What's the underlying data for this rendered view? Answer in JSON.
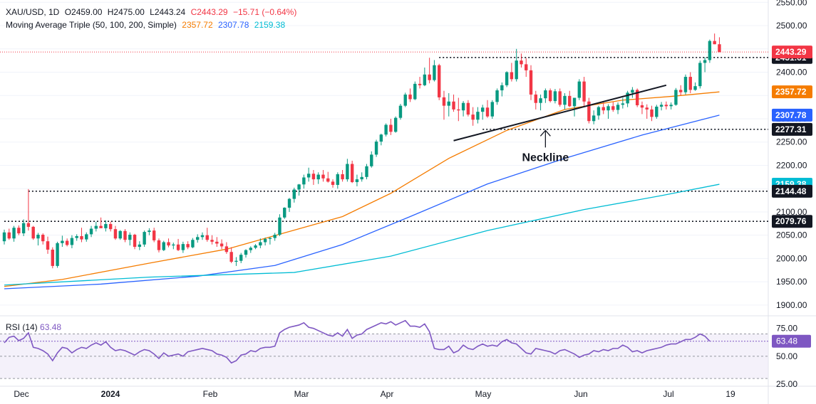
{
  "header": {
    "symbol": "XAU/USD, 1D",
    "open": "O2459.00",
    "high": "H2475.00",
    "low": "L2443.24",
    "close": "C2443.29",
    "change": "−15.71 (−0.64%)",
    "ma_label": "Moving Average Triple (50, 100, 200, Simple)",
    "ma50": "2357.72",
    "ma100": "2307.78",
    "ma200": "2159.38",
    "rsi_label": "RSI (14)",
    "rsi_value": "63.48"
  },
  "colors": {
    "up": "#089981",
    "down": "#f23645",
    "ma50": "#f57c00",
    "ma100": "#2962ff",
    "ma200": "#00bcd4",
    "rsi": "#7e57c2",
    "rsi_band": "#ede7f6",
    "last_price": "#f23645",
    "label_dark": "#131722"
  },
  "chart_data": {
    "type": "candlestick",
    "price_axis": {
      "ticks": [
        1900,
        1950,
        2000,
        2050,
        2100,
        2150,
        2200,
        2250,
        2300,
        2350,
        2400,
        2450,
        2500,
        2550
      ],
      "ylim": [
        1880,
        2555
      ],
      "visible_tick_labels": [
        "1900.00",
        "1950.00",
        "2000.00",
        "2050.00",
        "2100.00",
        "2200.00",
        "2250.00",
        "2300.00",
        "2400.00",
        "2500.00",
        "2550.00"
      ]
    },
    "x_axis": {
      "labels": [
        "Dec",
        "2024",
        "Feb",
        "Mar",
        "Apr",
        "May",
        "Jun",
        "Jul",
        "19"
      ]
    },
    "candles": [
      [
        2037,
        2062,
        2030,
        2056
      ],
      [
        2056,
        2064,
        2040,
        2043
      ],
      [
        2043,
        2070,
        2036,
        2066
      ],
      [
        2066,
        2071,
        2050,
        2054
      ],
      [
        2054,
        2084,
        2048,
        2076
      ],
      [
        2076,
        2149,
        2060,
        2068
      ],
      [
        2068,
        2070,
        2040,
        2043
      ],
      [
        2043,
        2055,
        2028,
        2051
      ],
      [
        2051,
        2054,
        2030,
        2037
      ],
      [
        2037,
        2047,
        2010,
        2019
      ],
      [
        2019,
        2024,
        1979,
        1984
      ],
      [
        1984,
        2036,
        1980,
        2033
      ],
      [
        2033,
        2049,
        2025,
        2038
      ],
      [
        2038,
        2043,
        2026,
        2029
      ],
      [
        2029,
        2050,
        2022,
        2044
      ],
      [
        2044,
        2052,
        2038,
        2048
      ],
      [
        2048,
        2066,
        2035,
        2041
      ],
      [
        2041,
        2056,
        2036,
        2052
      ],
      [
        2052,
        2070,
        2046,
        2064
      ],
      [
        2064,
        2079,
        2058,
        2070
      ],
      [
        2070,
        2088,
        2066,
        2065
      ],
      [
        2065,
        2082,
        2058,
        2074
      ],
      [
        2074,
        2079,
        2058,
        2063
      ],
      [
        2063,
        2070,
        2040,
        2043
      ],
      [
        2043,
        2061,
        2040,
        2059
      ],
      [
        2059,
        2063,
        2035,
        2040
      ],
      [
        2040,
        2056,
        2028,
        2051
      ],
      [
        2051,
        2053,
        2020,
        2025
      ],
      [
        2025,
        2037,
        2018,
        2030
      ],
      [
        2030,
        2060,
        2025,
        2057
      ],
      [
        2057,
        2065,
        2050,
        2060
      ],
      [
        2060,
        2066,
        2035,
        2039
      ],
      [
        2039,
        2043,
        2013,
        2018
      ],
      [
        2018,
        2038,
        2016,
        2035
      ],
      [
        2035,
        2043,
        2024,
        2028
      ],
      [
        2028,
        2034,
        2020,
        2030
      ],
      [
        2030,
        2042,
        2016,
        2018
      ],
      [
        2018,
        2036,
        2012,
        2031
      ],
      [
        2031,
        2037,
        2020,
        2024
      ],
      [
        2024,
        2044,
        2022,
        2040
      ],
      [
        2040,
        2052,
        2034,
        2046
      ],
      [
        2046,
        2056,
        2040,
        2050
      ],
      [
        2050,
        2066,
        2036,
        2040
      ],
      [
        2040,
        2050,
        2030,
        2036
      ],
      [
        2036,
        2046,
        2025,
        2032
      ],
      [
        2032,
        2041,
        2020,
        2026
      ],
      [
        2026,
        2035,
        2010,
        2014
      ],
      [
        2014,
        2024,
        1990,
        1993
      ],
      [
        1993,
        2003,
        1984,
        1995
      ],
      [
        1995,
        2012,
        1990,
        2008
      ],
      [
        2008,
        2020,
        2002,
        2018
      ],
      [
        2018,
        2026,
        2012,
        2023
      ],
      [
        2023,
        2031,
        2020,
        2028
      ],
      [
        2028,
        2043,
        2022,
        2035
      ],
      [
        2035,
        2045,
        2028,
        2042
      ],
      [
        2042,
        2046,
        2030,
        2044
      ],
      [
        2044,
        2055,
        2038,
        2051
      ],
      [
        2051,
        2095,
        2048,
        2088
      ],
      [
        2088,
        2110,
        2085,
        2109
      ],
      [
        2109,
        2130,
        2100,
        2128
      ],
      [
        2128,
        2152,
        2120,
        2148
      ],
      [
        2148,
        2160,
        2135,
        2159
      ],
      [
        2159,
        2180,
        2150,
        2174
      ],
      [
        2174,
        2195,
        2165,
        2182
      ],
      [
        2182,
        2190,
        2158,
        2170
      ],
      [
        2170,
        2185,
        2160,
        2180
      ],
      [
        2180,
        2190,
        2165,
        2172
      ],
      [
        2172,
        2186,
        2163,
        2165
      ],
      [
        2165,
        2170,
        2152,
        2158
      ],
      [
        2158,
        2185,
        2150,
        2181
      ],
      [
        2181,
        2190,
        2165,
        2170
      ],
      [
        2170,
        2214,
        2165,
        2203
      ],
      [
        2203,
        2210,
        2162,
        2164
      ],
      [
        2164,
        2180,
        2155,
        2170
      ],
      [
        2170,
        2185,
        2165,
        2175
      ],
      [
        2175,
        2203,
        2170,
        2198
      ],
      [
        2198,
        2230,
        2195,
        2223
      ],
      [
        2223,
        2255,
        2218,
        2251
      ],
      [
        2251,
        2268,
        2243,
        2266
      ],
      [
        2266,
        2290,
        2262,
        2287
      ],
      [
        2287,
        2300,
        2265,
        2272
      ],
      [
        2272,
        2305,
        2270,
        2302
      ],
      [
        2302,
        2332,
        2298,
        2328
      ],
      [
        2328,
        2356,
        2325,
        2352
      ],
      [
        2352,
        2365,
        2336,
        2342
      ],
      [
        2342,
        2380,
        2340,
        2375
      ],
      [
        2375,
        2390,
        2365,
        2372
      ],
      [
        2372,
        2410,
        2370,
        2395
      ],
      [
        2395,
        2431,
        2376,
        2383
      ],
      [
        2383,
        2426,
        2380,
        2415
      ],
      [
        2415,
        2418,
        2340,
        2346
      ],
      [
        2346,
        2360,
        2298,
        2328
      ],
      [
        2328,
        2355,
        2305,
        2337
      ],
      [
        2337,
        2352,
        2315,
        2320
      ],
      [
        2320,
        2345,
        2295,
        2318
      ],
      [
        2318,
        2338,
        2305,
        2334
      ],
      [
        2334,
        2340,
        2305,
        2309
      ],
      [
        2309,
        2325,
        2285,
        2298
      ],
      [
        2298,
        2325,
        2290,
        2315
      ],
      [
        2315,
        2330,
        2298,
        2324
      ],
      [
        2324,
        2340,
        2302,
        2305
      ],
      [
        2305,
        2340,
        2300,
        2336
      ],
      [
        2336,
        2365,
        2330,
        2361
      ],
      [
        2361,
        2378,
        2348,
        2372
      ],
      [
        2372,
        2402,
        2368,
        2400
      ],
      [
        2400,
        2420,
        2380,
        2385
      ],
      [
        2385,
        2450,
        2380,
        2425
      ],
      [
        2425,
        2440,
        2410,
        2417
      ],
      [
        2417,
        2430,
        2390,
        2404
      ],
      [
        2404,
        2415,
        2340,
        2352
      ],
      [
        2352,
        2360,
        2320,
        2334
      ],
      [
        2334,
        2352,
        2318,
        2344
      ],
      [
        2344,
        2365,
        2334,
        2361
      ],
      [
        2361,
        2365,
        2335,
        2338
      ],
      [
        2338,
        2364,
        2333,
        2359
      ],
      [
        2359,
        2365,
        2326,
        2330
      ],
      [
        2330,
        2355,
        2320,
        2349
      ],
      [
        2349,
        2360,
        2325,
        2327
      ],
      [
        2327,
        2340,
        2305,
        2345
      ],
      [
        2345,
        2385,
        2340,
        2380
      ],
      [
        2380,
        2390,
        2325,
        2337
      ],
      [
        2337,
        2345,
        2290,
        2295
      ],
      [
        2295,
        2318,
        2288,
        2307
      ],
      [
        2307,
        2328,
        2298,
        2325
      ],
      [
        2325,
        2335,
        2310,
        2318
      ],
      [
        2318,
        2331,
        2300,
        2327
      ],
      [
        2327,
        2336,
        2315,
        2319
      ],
      [
        2319,
        2335,
        2310,
        2330
      ],
      [
        2330,
        2345,
        2322,
        2333
      ],
      [
        2333,
        2360,
        2325,
        2356
      ],
      [
        2356,
        2368,
        2345,
        2362
      ],
      [
        2362,
        2365,
        2325,
        2329
      ],
      [
        2329,
        2337,
        2310,
        2324
      ],
      [
        2324,
        2331,
        2300,
        2320
      ],
      [
        2320,
        2328,
        2295,
        2304
      ],
      [
        2304,
        2330,
        2300,
        2326
      ],
      [
        2326,
        2336,
        2318,
        2330
      ],
      [
        2330,
        2337,
        2320,
        2327
      ],
      [
        2327,
        2335,
        2320,
        2330
      ],
      [
        2330,
        2366,
        2328,
        2362
      ],
      [
        2362,
        2372,
        2350,
        2357
      ],
      [
        2357,
        2395,
        2352,
        2390
      ],
      [
        2390,
        2400,
        2355,
        2362
      ],
      [
        2362,
        2378,
        2360,
        2370
      ],
      [
        2370,
        2425,
        2365,
        2420
      ],
      [
        2420,
        2432,
        2400,
        2426
      ],
      [
        2426,
        2470,
        2420,
        2467
      ],
      [
        2467,
        2483,
        2460,
        2460
      ],
      [
        2460,
        2475,
        2443,
        2443
      ]
    ],
    "ma50": [
      [
        0,
        1940
      ],
      [
        12,
        1955
      ],
      [
        30,
        1990
      ],
      [
        46,
        2020
      ],
      [
        58,
        2055
      ],
      [
        70,
        2090
      ],
      [
        80,
        2140
      ],
      [
        92,
        2215
      ],
      [
        104,
        2275
      ],
      [
        116,
        2320
      ],
      [
        128,
        2340
      ],
      [
        138,
        2348
      ],
      [
        148,
        2357.72
      ]
    ],
    "ma100": [
      [
        0,
        1935
      ],
      [
        20,
        1945
      ],
      [
        40,
        1962
      ],
      [
        56,
        1985
      ],
      [
        70,
        2030
      ],
      [
        84,
        2090
      ],
      [
        100,
        2160
      ],
      [
        116,
        2215
      ],
      [
        132,
        2265
      ],
      [
        148,
        2307.78
      ]
    ],
    "ma200": [
      [
        0,
        1943
      ],
      [
        30,
        1960
      ],
      [
        60,
        1970
      ],
      [
        80,
        2005
      ],
      [
        100,
        2060
      ],
      [
        120,
        2105
      ],
      [
        136,
        2135
      ],
      [
        148,
        2159.38
      ]
    ],
    "annotations": {
      "neckline_text": "Neckline",
      "neckline": [
        [
          93,
          2253
        ],
        [
          137,
          2372
        ]
      ],
      "levels": [
        {
          "value": 2431.61,
          "label": "2431.61",
          "from": 90
        },
        {
          "value": 2277.31,
          "label": "2277.31",
          "from": 99
        },
        {
          "value": 2144.48,
          "label": "2144.48",
          "from": 5
        },
        {
          "value": 2079.76,
          "label": "2079.76",
          "from": 0
        }
      ],
      "last_price": {
        "value": 2443.29,
        "label": "2443.29"
      },
      "ma_labels": [
        {
          "value": 2357.72,
          "label": "2357.72",
          "series": "ma50"
        },
        {
          "value": 2307.78,
          "label": "2307.78",
          "series": "ma100"
        },
        {
          "value": 2159.38,
          "label": "2159.38",
          "series": "ma200"
        }
      ]
    },
    "rsi": {
      "ylim": [
        25,
        85
      ],
      "ticks": [
        25,
        50,
        75
      ],
      "tick_labels": [
        "25.00",
        "50.00",
        "75.00"
      ],
      "band": [
        30,
        70
      ],
      "last": 63.48,
      "values": [
        62,
        67,
        68,
        64,
        66,
        71,
        58,
        57,
        55,
        52,
        46,
        53,
        58,
        57,
        53,
        56,
        58,
        57,
        60,
        62,
        60,
        63,
        58,
        55,
        56,
        55,
        53,
        51,
        54,
        56,
        55,
        52,
        48,
        53,
        50,
        51,
        52,
        50,
        54,
        55,
        56,
        57,
        56,
        55,
        52,
        51,
        49,
        44,
        46,
        51,
        52,
        55,
        54,
        57,
        58,
        58,
        59,
        71,
        74,
        76,
        77,
        78,
        80,
        76,
        75,
        73,
        71,
        69,
        68,
        71,
        68,
        74,
        66,
        69,
        70,
        74,
        76,
        78,
        80,
        79,
        81,
        78,
        80,
        82,
        77,
        77,
        76,
        79,
        72,
        57,
        56,
        56,
        59,
        53,
        55,
        60,
        57,
        56,
        59,
        61,
        59,
        60,
        59,
        63,
        65,
        62,
        61,
        57,
        53,
        52,
        57,
        56,
        55,
        54,
        52,
        55,
        56,
        54,
        52,
        49,
        51,
        52,
        55,
        54,
        56,
        55,
        57,
        57,
        60,
        58,
        54,
        55,
        53,
        55,
        56,
        57,
        58,
        60,
        61,
        61,
        63,
        65,
        65,
        67,
        70,
        68,
        63.48
      ]
    }
  }
}
